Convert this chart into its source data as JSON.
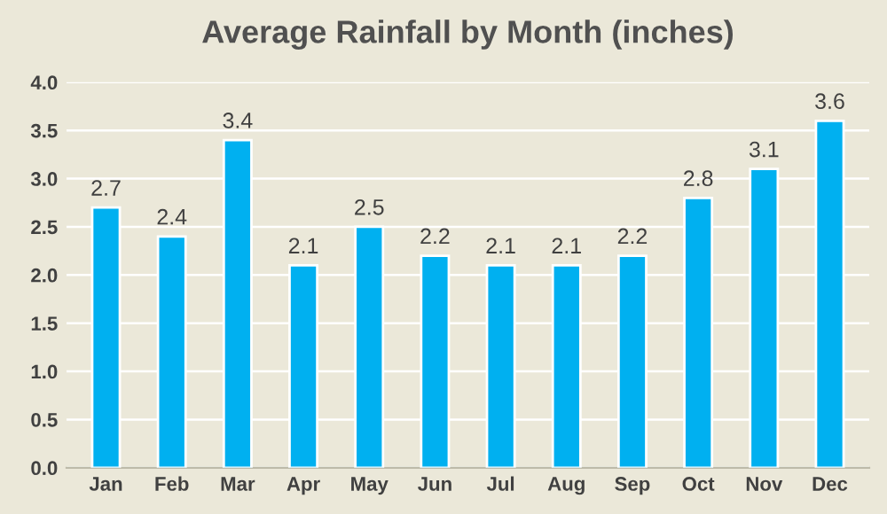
{
  "chart_data": {
    "type": "bar",
    "title": "Average Rainfall by Month (inches)",
    "categories": [
      "Jan",
      "Feb",
      "Mar",
      "Apr",
      "May",
      "Jun",
      "Jul",
      "Aug",
      "Sep",
      "Oct",
      "Nov",
      "Dec"
    ],
    "values": [
      2.7,
      2.4,
      3.4,
      2.1,
      2.5,
      2.2,
      2.1,
      2.1,
      2.2,
      2.8,
      3.1,
      3.6
    ],
    "color": "#00b0f0",
    "ylim": [
      0,
      4
    ],
    "yticks": [
      {
        "value": 0,
        "label": "0.0"
      },
      {
        "value": 0.5,
        "label": "0.5"
      },
      {
        "value": 1,
        "label": "1.0"
      },
      {
        "value": 1.5,
        "label": "1.5"
      },
      {
        "value": 2,
        "label": "2.0"
      },
      {
        "value": 2.5,
        "label": "2.5"
      },
      {
        "value": 3,
        "label": "3.0"
      },
      {
        "value": 3.5,
        "label": "3.5"
      },
      {
        "value": 4,
        "label": "4.0"
      }
    ],
    "grid": "y",
    "data_labels": true
  }
}
